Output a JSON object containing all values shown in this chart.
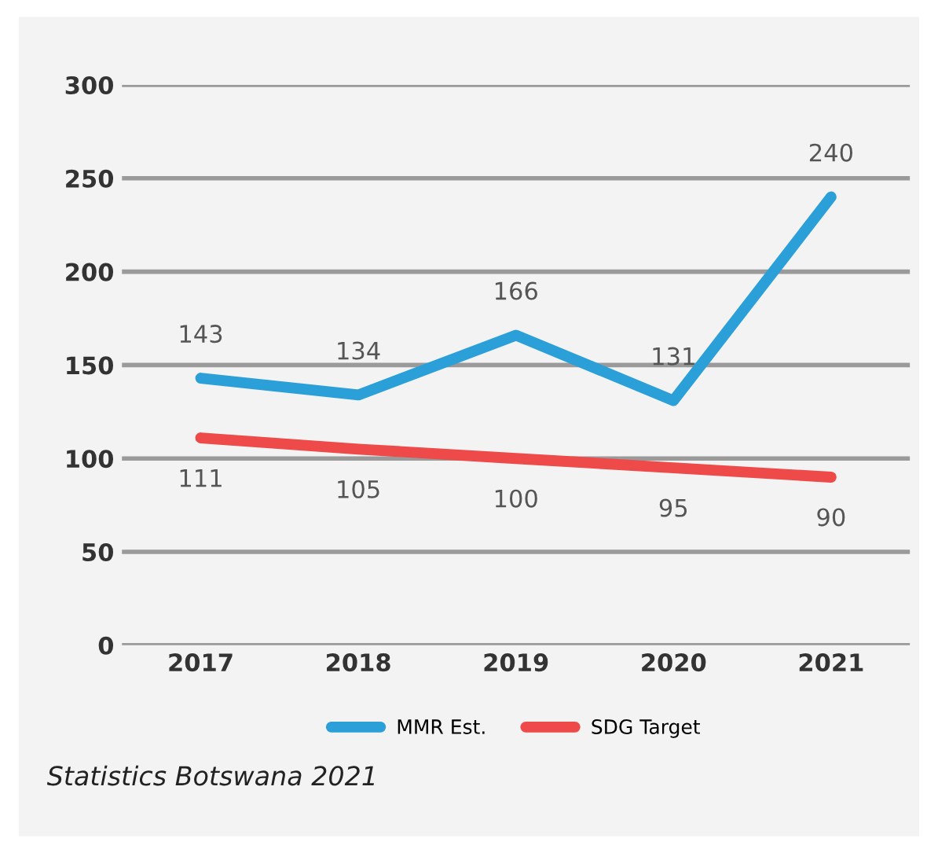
{
  "chart_data": {
    "type": "line",
    "categories": [
      "2017",
      "2018",
      "2019",
      "2020",
      "2021"
    ],
    "series": [
      {
        "name": "MMR Est.",
        "color": "#2a9fd8",
        "values": [
          143,
          134,
          166,
          131,
          240
        ]
      },
      {
        "name": "SDG Target",
        "color": "#ee4a4a",
        "values": [
          111,
          105,
          100,
          95,
          90
        ]
      }
    ],
    "ylim": [
      0,
      300
    ],
    "yticks": [
      0,
      50,
      100,
      150,
      200,
      250,
      300
    ],
    "grid": "y",
    "legend": "bottom",
    "data_labels": true,
    "marker": "none",
    "line_style": "solid",
    "annotations": [
      "Statistics Botswana 2021"
    ]
  }
}
